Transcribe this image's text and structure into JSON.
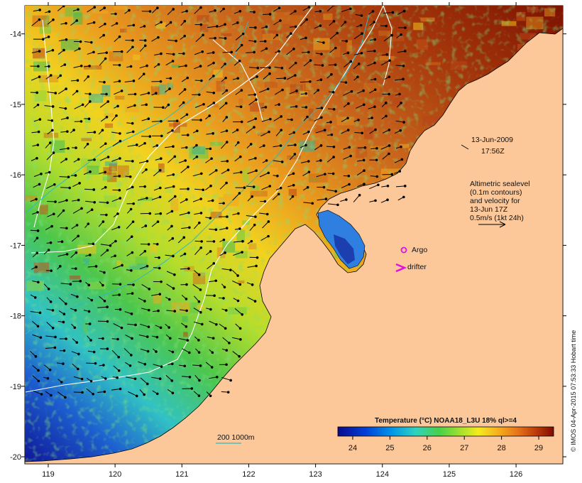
{
  "map": {
    "lon_range": [
      118.65,
      126.7
    ],
    "lat_range": [
      -20.1,
      -13.6
    ],
    "lon_ticks": [
      119,
      120,
      121,
      122,
      123,
      124,
      125,
      126
    ],
    "lat_ticks": [
      -14,
      -15,
      -16,
      -17,
      -18,
      -19,
      -20
    ],
    "land_color": "#fcc89a",
    "ocean_scale": "NOAA18_L3U SST",
    "colors": {
      "cold": "#10129e",
      "mid": "#32c9c0",
      "warm": "#f7a41e",
      "hot": "#8d1200",
      "contour": "#ffffff",
      "isobath": "#2fbac4"
    }
  },
  "annotations": {
    "date": "13-Jun-2009",
    "time": "17:56Z",
    "altimetry_lines": [
      "Altimetric sealevel",
      "(0.1m contours)",
      "and velocity for",
      "13-Jun 17Z",
      "0.5m/s (1kt 24h)"
    ],
    "argo_label": "Argo",
    "drifter_label": "drifter",
    "isobath_label": "200  1000m",
    "credit": "© IMOS 04-Apr-2015 07:53:33 Hobart time"
  },
  "colorbar": {
    "title": "Temperature (°C) NOAA18_L3U 18% ql>=4",
    "tick_labels": [
      "24",
      "25",
      "26",
      "27",
      "28",
      "29"
    ],
    "range": [
      23.6,
      29.4
    ]
  }
}
